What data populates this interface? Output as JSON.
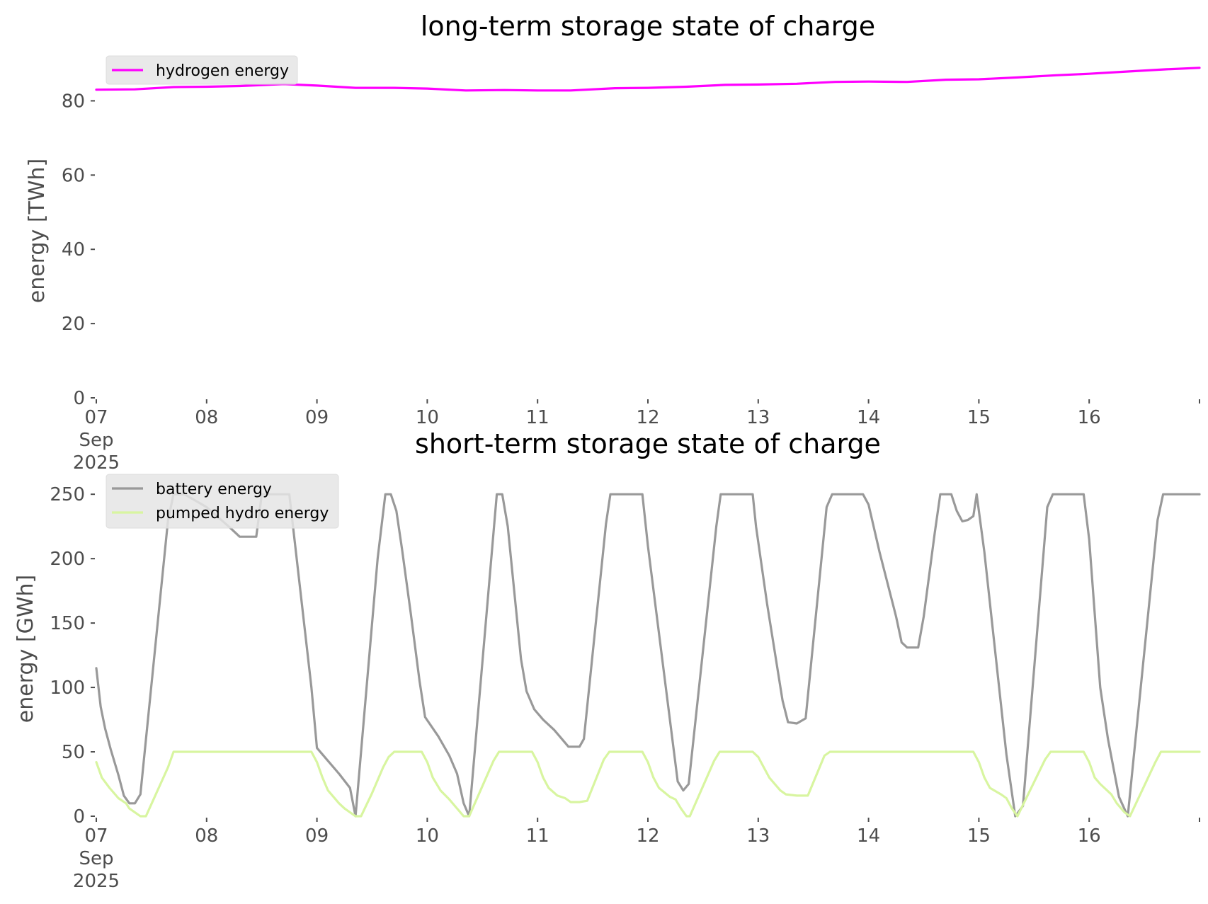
{
  "chart_data": [
    {
      "type": "line",
      "title": "long-term storage state of charge",
      "ylabel": "energy [TWh]",
      "xlabel": "",
      "ylim": [
        0,
        90
      ],
      "yticks": [
        "0",
        "20",
        "40",
        "60",
        "80"
      ],
      "xlim": [
        "2025-09-07",
        "2025-09-17"
      ],
      "xticks": [
        "07",
        "08",
        "09",
        "10",
        "11",
        "12",
        "13",
        "14",
        "15",
        "16"
      ],
      "xtick_sublabels": [
        "Sep",
        "2025"
      ],
      "grid": false,
      "legend_position": "top-left",
      "series": [
        {
          "name": "hydrogen energy",
          "color": "#ff00ff",
          "x": [
            7.0,
            7.35,
            7.7,
            8.0,
            8.3,
            8.7,
            9.0,
            9.35,
            9.7,
            10.0,
            10.35,
            10.7,
            11.0,
            11.3,
            11.7,
            12.0,
            12.35,
            12.7,
            13.0,
            13.35,
            13.7,
            14.0,
            14.35,
            14.7,
            15.0,
            15.35,
            15.7,
            16.0,
            16.35,
            16.7,
            17.0
          ],
          "y": [
            83.0,
            83.1,
            83.7,
            83.8,
            84.0,
            84.5,
            84.1,
            83.5,
            83.5,
            83.3,
            82.8,
            82.9,
            82.8,
            82.8,
            83.4,
            83.5,
            83.8,
            84.3,
            84.4,
            84.6,
            85.1,
            85.2,
            85.1,
            85.7,
            85.8,
            86.3,
            86.9,
            87.3,
            87.9,
            88.5,
            88.9
          ]
        }
      ]
    },
    {
      "type": "line",
      "title": "short-term storage state of charge",
      "ylabel": "energy [GWh]",
      "xlabel": "",
      "ylim": [
        0,
        260
      ],
      "yticks": [
        "0",
        "50",
        "100",
        "150",
        "200",
        "250"
      ],
      "xlim": [
        "2025-09-07",
        "2025-09-17"
      ],
      "xticks": [
        "07",
        "08",
        "09",
        "10",
        "11",
        "12",
        "13",
        "14",
        "15",
        "16"
      ],
      "xtick_sublabels": [
        "Sep",
        "2025"
      ],
      "grid": false,
      "legend_position": "top-left",
      "series": [
        {
          "name": "battery energy",
          "color": "#999999",
          "x": [
            7.0,
            7.04,
            7.08,
            7.13,
            7.2,
            7.25,
            7.3,
            7.35,
            7.4,
            7.65,
            7.7,
            7.75,
            7.8,
            8.0,
            8.2,
            8.3,
            8.4,
            8.45,
            8.5,
            8.75,
            8.85,
            8.95,
            9.0,
            9.1,
            9.2,
            9.3,
            9.35,
            9.55,
            9.62,
            9.67,
            9.72,
            9.77,
            9.85,
            9.93,
            9.98,
            10.1,
            10.2,
            10.27,
            10.33,
            10.38,
            10.63,
            10.68,
            10.73,
            10.85,
            10.9,
            10.97,
            11.05,
            11.15,
            11.2,
            11.28,
            11.38,
            11.42,
            11.62,
            11.66,
            11.95,
            12.0,
            12.27,
            12.32,
            12.37,
            12.62,
            12.66,
            12.95,
            12.98,
            13.08,
            13.22,
            13.27,
            13.35,
            13.43,
            13.62,
            13.67,
            13.95,
            14.0,
            14.1,
            14.25,
            14.3,
            14.35,
            14.45,
            14.5,
            14.6,
            14.65,
            14.75,
            14.8,
            14.85,
            14.9,
            14.95,
            14.98,
            15.05,
            15.25,
            15.33,
            15.4,
            15.62,
            15.67,
            15.95,
            16.0,
            16.1,
            16.17,
            16.27,
            16.35,
            16.62,
            16.67,
            17.0
          ],
          "y": [
            115,
            85,
            68,
            52,
            32,
            16,
            10,
            10,
            17,
            230,
            250,
            250,
            250,
            240,
            225,
            217,
            217,
            217,
            250,
            250,
            175,
            100,
            53,
            43,
            33,
            22,
            0,
            200,
            250,
            250,
            237,
            208,
            158,
            105,
            77,
            62,
            47,
            33,
            10,
            0,
            250,
            250,
            225,
            122,
            97,
            83,
            75,
            67,
            62,
            54,
            54,
            60,
            227,
            250,
            250,
            210,
            27,
            20,
            25,
            225,
            250,
            250,
            225,
            165,
            90,
            73,
            72,
            76,
            240,
            250,
            250,
            242,
            205,
            155,
            135,
            131,
            131,
            155,
            220,
            250,
            250,
            237,
            229,
            230,
            233,
            250,
            205,
            48,
            0,
            8,
            240,
            250,
            250,
            215,
            100,
            60,
            15,
            0,
            230,
            250,
            250
          ]
        },
        {
          "name": "pumped hydro energy",
          "color": "#d8f5a0",
          "x": [
            7.0,
            7.05,
            7.12,
            7.2,
            7.27,
            7.3,
            7.4,
            7.45,
            7.65,
            7.7,
            8.0,
            8.5,
            8.95,
            9.0,
            9.05,
            9.1,
            9.2,
            9.25,
            9.35,
            9.4,
            9.5,
            9.6,
            9.65,
            9.7,
            9.95,
            10.0,
            10.05,
            10.12,
            10.2,
            10.27,
            10.33,
            10.38,
            10.6,
            10.65,
            10.95,
            11.0,
            11.05,
            11.1,
            11.18,
            11.25,
            11.3,
            11.35,
            11.38,
            11.45,
            11.6,
            11.65,
            11.95,
            12.0,
            12.05,
            12.1,
            12.2,
            12.25,
            12.3,
            12.35,
            12.38,
            12.6,
            12.65,
            12.95,
            13.0,
            13.05,
            13.1,
            13.2,
            13.25,
            13.35,
            13.38,
            13.45,
            13.6,
            13.65,
            14.0,
            14.5,
            14.95,
            15.0,
            15.05,
            15.1,
            15.2,
            15.25,
            15.3,
            15.35,
            15.6,
            15.65,
            15.95,
            16.0,
            16.05,
            16.1,
            16.2,
            16.25,
            16.32,
            16.37,
            16.6,
            16.65,
            17.0
          ],
          "y": [
            42,
            30,
            22,
            14,
            10,
            6,
            0,
            0,
            38,
            50,
            50,
            50,
            50,
            42,
            30,
            20,
            10,
            6,
            0,
            0,
            18,
            38,
            46,
            50,
            50,
            42,
            30,
            20,
            13,
            6,
            0,
            0,
            43,
            50,
            50,
            42,
            30,
            22,
            16,
            14,
            11,
            11,
            11,
            12,
            44,
            50,
            50,
            42,
            30,
            22,
            15,
            13,
            6,
            0,
            0,
            43,
            50,
            50,
            46,
            38,
            30,
            20,
            17,
            16,
            16,
            16,
            47,
            50,
            50,
            50,
            50,
            42,
            30,
            22,
            17,
            14,
            6,
            0,
            44,
            50,
            50,
            42,
            30,
            25,
            17,
            10,
            3,
            0,
            42,
            50,
            50
          ]
        }
      ]
    }
  ]
}
